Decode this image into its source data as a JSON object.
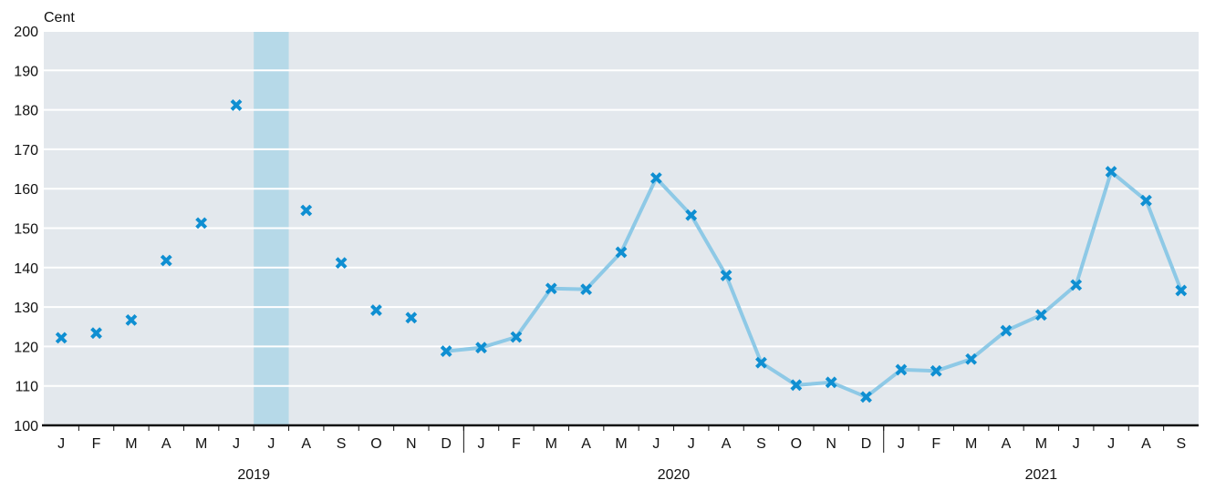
{
  "chart_data": {
    "type": "line",
    "ylabel": "Cent",
    "ylim": [
      100,
      200
    ],
    "yticks": [
      100,
      110,
      120,
      130,
      140,
      150,
      160,
      170,
      180,
      190,
      200
    ],
    "grid": true,
    "months": [
      "J",
      "F",
      "M",
      "A",
      "M",
      "J",
      "J",
      "A",
      "S",
      "O",
      "N",
      "D",
      "J",
      "F",
      "M",
      "A",
      "M",
      "J",
      "J",
      "A",
      "S",
      "O",
      "N",
      "D",
      "J",
      "F",
      "M",
      "A",
      "M",
      "J",
      "J",
      "A",
      "S"
    ],
    "years": [
      {
        "label": "2019",
        "start": 0,
        "end": 11
      },
      {
        "label": "2020",
        "start": 12,
        "end": 23
      },
      {
        "label": "2021",
        "start": 24,
        "end": 32
      }
    ],
    "highlight_index": 6,
    "values": [
      122.2,
      123.4,
      126.7,
      141.8,
      151.3,
      181.2,
      null,
      154.5,
      141.2,
      129.2,
      127.3,
      118.8,
      119.7,
      122.4,
      134.7,
      134.5,
      143.9,
      162.7,
      153.3,
      138.0,
      115.9,
      110.2,
      110.9,
      107.2,
      114.1,
      113.8,
      116.8,
      124.0,
      128.0,
      135.6,
      164.3,
      157.0,
      134.2
    ],
    "line_start_index": 11,
    "colors": {
      "plot_bg": "#e3e8ed",
      "grid": "#ffffff",
      "line": "#8ec9e6",
      "marker": "#0f8fd2",
      "highlight": "#b6d9e8",
      "axis": "#111111"
    }
  }
}
